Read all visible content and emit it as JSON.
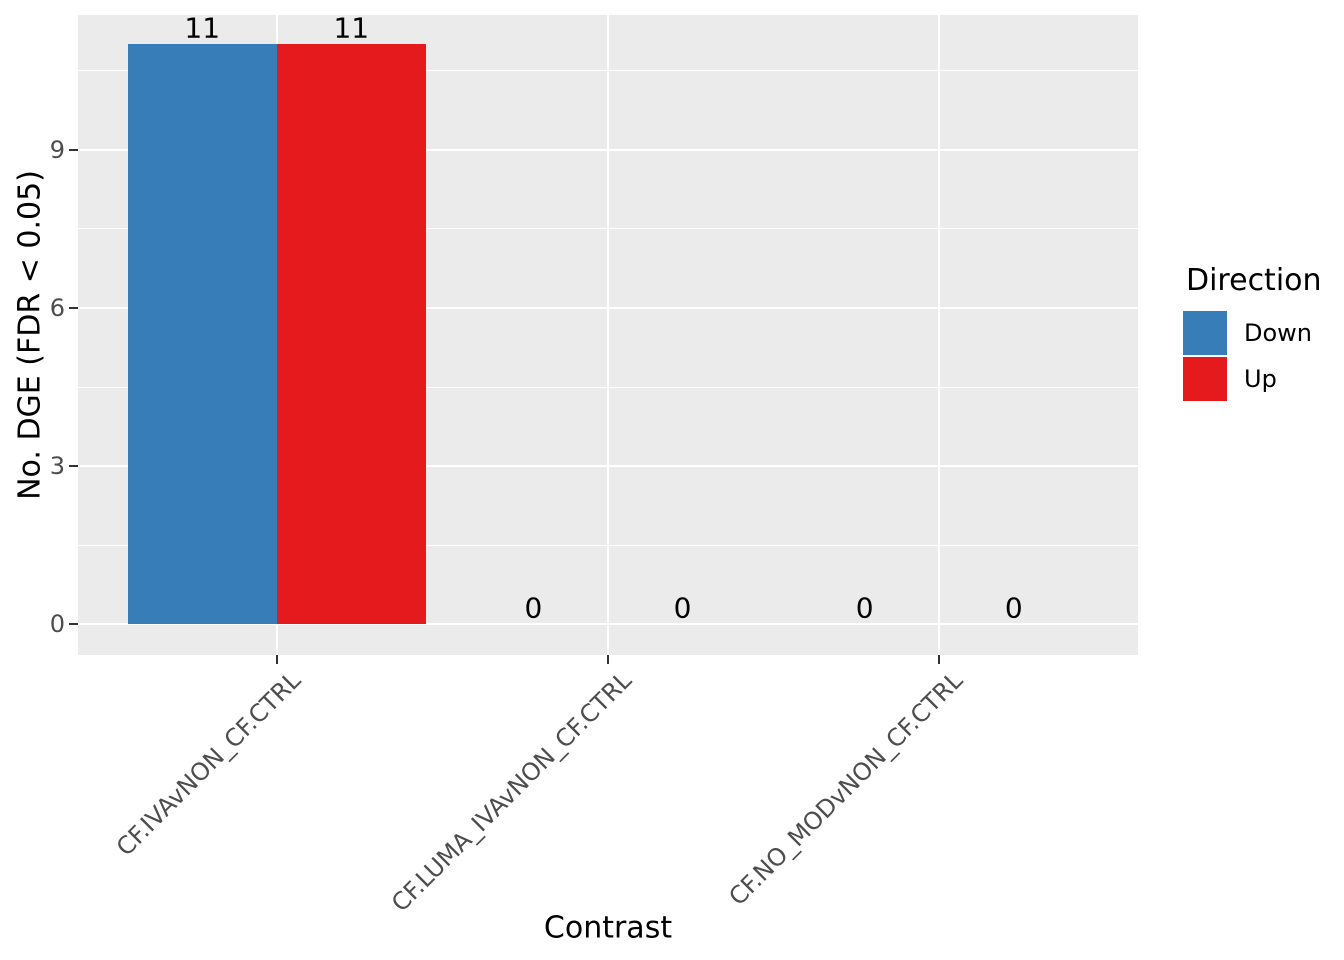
{
  "figure": {
    "background": "#FFFFFF",
    "panel_bg": "#EBEBEB",
    "grid_color": "#FFFFFF",
    "tick_mark_color": "#333333",
    "tick_label_color": "#4D4D4D",
    "text_color": "#000000"
  },
  "chart_data": {
    "type": "bar",
    "title": "",
    "xlabel": "Contrast",
    "ylabel": "No. DGE (FDR < 0.05)",
    "categories": [
      "CF.IVAvNON_CF.CTRL",
      "CF.LUMA_IVAvNON_CF.CTRL",
      "CF.NO_MODvNON_CF.CTRL"
    ],
    "series": [
      {
        "name": "Down",
        "color": "#377EB8",
        "values": [
          11,
          0,
          0
        ]
      },
      {
        "name": "Up",
        "color": "#E41A1C",
        "values": [
          11,
          0,
          0
        ]
      }
    ],
    "bar_value_labels": [
      "11",
      "11",
      "0",
      "0",
      "0",
      "0"
    ],
    "yticks": [
      0,
      3,
      6,
      9
    ],
    "yminor": [
      1.5,
      4.5,
      7.5,
      10.5
    ],
    "ylim": [
      -0.578,
      11.55
    ],
    "grid": true,
    "legend_title": "Direction",
    "legend_position": "right",
    "legend_entries": [
      "Down",
      "Up"
    ],
    "bar_orientation": "vertical",
    "dodge": true
  }
}
